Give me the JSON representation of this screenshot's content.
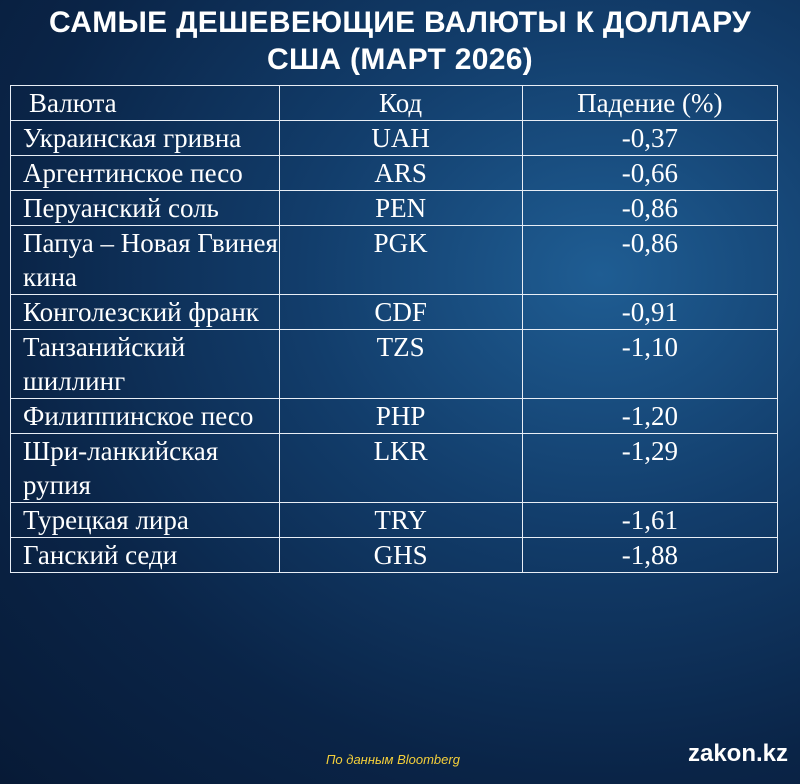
{
  "title": {
    "line1": "САМЫЕ ДЕШЕВЕЮЩИЕ ВАЛЮТЫ К ДОЛЛАРУ",
    "line2": "США (МАРТ 2026)"
  },
  "table": {
    "headers": [
      "Валюта",
      "Код",
      "Падение (%)"
    ],
    "rows": [
      {
        "name": "Украинская гривна",
        "code": "UAH",
        "drop": "-0,37"
      },
      {
        "name": "Аргентинское песо",
        "code": "ARS",
        "drop": "-0,66"
      },
      {
        "name": "Перуанский соль",
        "code": "PEN",
        "drop": "-0,86"
      },
      {
        "name": "Папуа – Новая Гвинея кина",
        "code": "PGK",
        "drop": "-0,86"
      },
      {
        "name": "Конголезский франк",
        "code": "CDF",
        "drop": "-0,91"
      },
      {
        "name": "Танзанийский шиллинг",
        "code": "TZS",
        "drop": "-1,10"
      },
      {
        "name": "Филиппинское песо",
        "code": "PHP",
        "drop": "-1,20"
      },
      {
        "name": "Шри-ланкийская рупия",
        "code": "LKR",
        "drop": "-1,29"
      },
      {
        "name": "Турецкая лира",
        "code": "TRY",
        "drop": "-1,61"
      },
      {
        "name": "Ганский седи",
        "code": "GHS",
        "drop": "-1,88"
      }
    ]
  },
  "footer": {
    "source": "По данным Bloomberg",
    "brand": "zakon.kz"
  },
  "colors": {
    "source_text": "#f4cf3a",
    "background_dark": "#071a36",
    "background_light": "#1f5d93"
  }
}
